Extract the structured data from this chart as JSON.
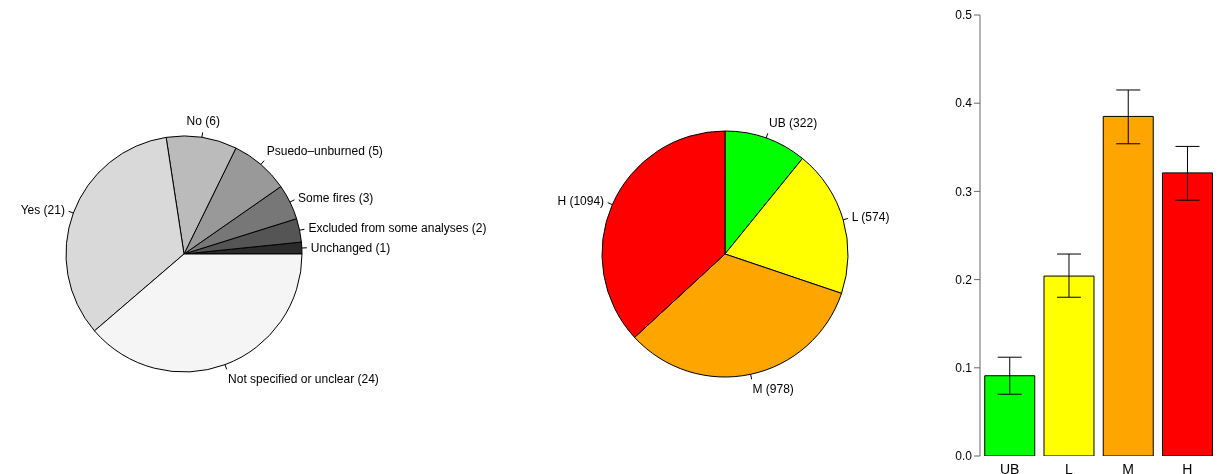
{
  "chart_data": [
    {
      "type": "pie",
      "categories": [
        "Unchanged (1)",
        "Excluded from some analyses (2)",
        "Some fires (3)",
        "Psuedo–unburned (5)",
        "No (6)",
        "Yes (21)",
        "Not specified or unclear (24)"
      ],
      "values": [
        1,
        2,
        3,
        5,
        6,
        21,
        24
      ],
      "colors": [
        "#2b2b2b",
        "#555555",
        "#777777",
        "#999999",
        "#bbbbbb",
        "#d9d9d9",
        "#f5f5f5"
      ]
    },
    {
      "type": "pie",
      "categories": [
        "UB (322)",
        "L (574)",
        "M (978)",
        "H (1094)"
      ],
      "values": [
        322,
        574,
        978,
        1094
      ],
      "colors": [
        "#00ff00",
        "#ffff00",
        "#ffa500",
        "#ff0000"
      ]
    },
    {
      "type": "bar",
      "categories": [
        "UB",
        "L",
        "M",
        "H"
      ],
      "values": [
        0.091,
        0.204,
        0.385,
        0.321
      ],
      "colors": [
        "#00ff00",
        "#ffff00",
        "#ffa500",
        "#ff0000"
      ],
      "errors": [
        [
          0.07,
          0.112
        ],
        [
          0.18,
          0.229
        ],
        [
          0.354,
          0.415
        ],
        [
          0.29,
          0.351
        ]
      ],
      "ylim": [
        0,
        0.5
      ],
      "yticks": [
        {
          "value": 0,
          "label": "0.0"
        },
        {
          "value": 0.1,
          "label": "0.1"
        },
        {
          "value": 0.2,
          "label": "0.2"
        },
        {
          "value": 0.3,
          "label": "0.3"
        },
        {
          "value": 0.4,
          "label": "0.4"
        },
        {
          "value": 0.5,
          "label": "0.5"
        }
      ],
      "grid": false
    }
  ]
}
